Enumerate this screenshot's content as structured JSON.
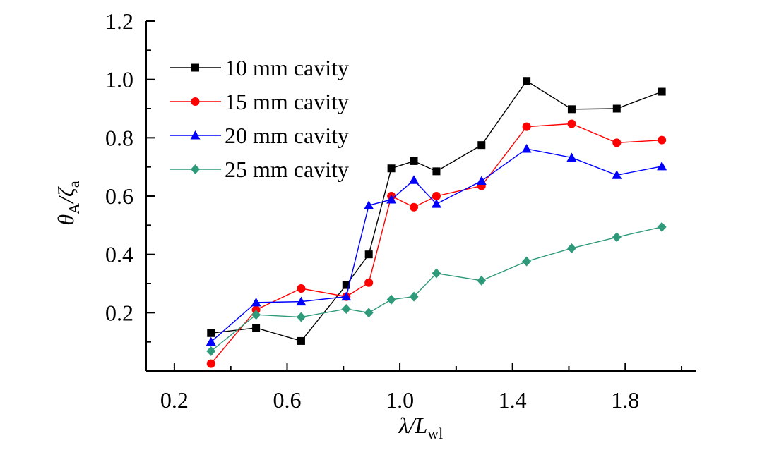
{
  "chart_data": {
    "type": "line",
    "xlabel": {
      "main": "λ/",
      "var": "L",
      "sub": "wl"
    },
    "ylabel": {
      "main": "θ",
      "sub": "A",
      "rest": "/ζ",
      "sub2": "a"
    },
    "xlim": [
      0.1,
      2.05
    ],
    "ylim": [
      0.0,
      1.2
    ],
    "x_ticks": [
      0.2,
      0.6,
      1.0,
      1.4,
      1.8
    ],
    "x_tick_labels": [
      "0.2",
      "0.6",
      "1.0",
      "1.4",
      "1.8"
    ],
    "y_ticks": [
      0.2,
      0.4,
      0.6,
      0.8,
      1.0,
      1.2
    ],
    "y_tick_labels": [
      "0.2",
      "0.4",
      "0.6",
      "0.8",
      "1.0",
      "1.2"
    ],
    "grid": false,
    "legend_position": "top-left",
    "series": [
      {
        "name": "10 mm cavity",
        "color": "#000000",
        "marker": "square",
        "x": [
          0.33,
          0.49,
          0.65,
          0.81,
          0.89,
          0.97,
          1.05,
          1.13,
          1.29,
          1.45,
          1.61,
          1.77,
          1.93
        ],
        "y": [
          0.13,
          0.148,
          0.103,
          0.295,
          0.4,
          0.695,
          0.72,
          0.685,
          0.775,
          0.995,
          0.898,
          0.9,
          0.958
        ]
      },
      {
        "name": "15 mm cavity",
        "color": "#ff0000",
        "marker": "circle",
        "x": [
          0.33,
          0.49,
          0.65,
          0.81,
          0.89,
          0.97,
          1.05,
          1.13,
          1.29,
          1.45,
          1.61,
          1.77,
          1.93
        ],
        "y": [
          0.025,
          0.21,
          0.283,
          0.255,
          0.303,
          0.6,
          0.562,
          0.6,
          0.635,
          0.838,
          0.848,
          0.783,
          0.792
        ]
      },
      {
        "name": "20 mm cavity",
        "color": "#0000ff",
        "marker": "triangle",
        "x": [
          0.33,
          0.49,
          0.65,
          0.81,
          0.89,
          0.97,
          1.05,
          1.13,
          1.29,
          1.45,
          1.61,
          1.77,
          1.93
        ],
        "y": [
          0.1,
          0.235,
          0.238,
          0.255,
          0.568,
          0.588,
          0.655,
          0.573,
          0.652,
          0.762,
          0.732,
          0.672,
          0.702
        ]
      },
      {
        "name": "25 mm cavity",
        "color": "#2e9a7a",
        "marker": "diamond",
        "x": [
          0.33,
          0.49,
          0.65,
          0.81,
          0.89,
          0.97,
          1.05,
          1.13,
          1.29,
          1.45,
          1.61,
          1.77,
          1.93
        ],
        "y": [
          0.068,
          0.193,
          0.185,
          0.213,
          0.2,
          0.245,
          0.255,
          0.335,
          0.31,
          0.376,
          0.421,
          0.459,
          0.494
        ]
      }
    ]
  }
}
